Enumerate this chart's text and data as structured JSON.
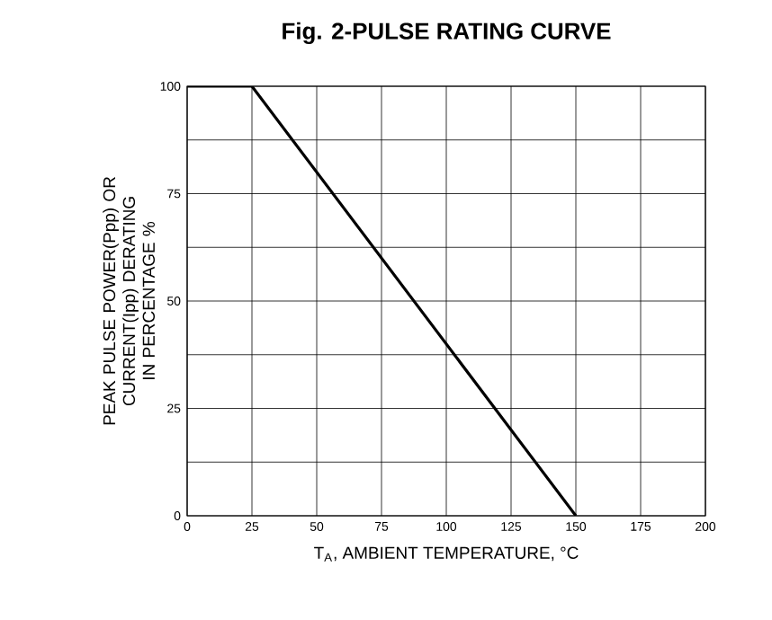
{
  "chart_data": {
    "type": "line",
    "title": "Fig. 2-PULSE RATING CURVE",
    "xlabel": "T$_{A}$, AMBIENT TEMPERATURE, °C",
    "ylabel": "PEAK PULSE POWER(Ppp) OR CURRENT(Ipp) DERATING IN PERCENTAGE %",
    "x": [
      0,
      25,
      150
    ],
    "series": [
      {
        "color": "#000000",
        "values": [
          100,
          100,
          0
        ]
      }
    ],
    "xlim": [
      0,
      200
    ],
    "ylim": [
      0,
      100
    ],
    "xticks": [
      0,
      25,
      50,
      75,
      100,
      125,
      150,
      175,
      200
    ],
    "yticks": [
      0,
      25,
      50,
      75,
      100
    ],
    "grid": true,
    "marker": "none",
    "line_style": "solid"
  }
}
